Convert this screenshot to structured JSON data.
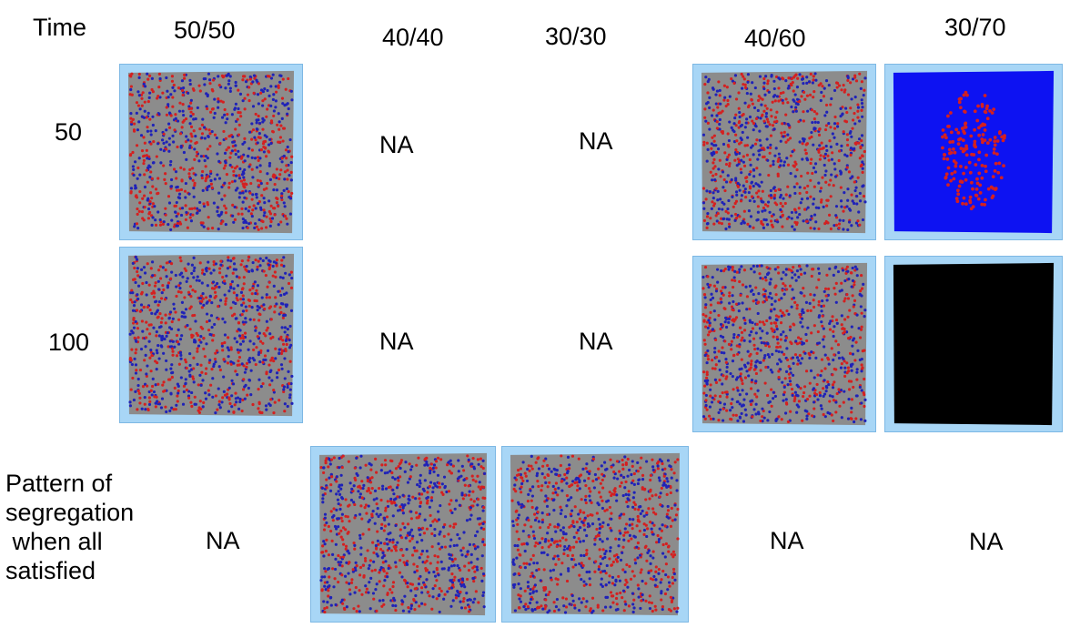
{
  "header": {
    "time_label": "Time",
    "columns": [
      "50/50",
      "40/40",
      "30/30",
      "40/60",
      "30/70"
    ]
  },
  "rows": {
    "r1": "50",
    "r2": "100",
    "r3_line1": "Pattern of",
    "r3_line2": "segregation",
    "r3_line3": " when all",
    "r3_line4": "satisfied"
  },
  "na_label": "NA",
  "colors": {
    "frame": "#a8d6f6",
    "grid_gray": "#8c8c8c",
    "red_agent": "#d42020",
    "blue_agent": "#1f22b8",
    "blue_field": "#0d12f2",
    "black_field": "#000000"
  },
  "panels": [
    {
      "id": "p-50-50-t50",
      "kind": "mixed"
    },
    {
      "id": "p-50-50-t100",
      "kind": "mixed"
    },
    {
      "id": "p-40-60-t50",
      "kind": "mixed"
    },
    {
      "id": "p-40-60-t100",
      "kind": "mixed"
    },
    {
      "id": "p-30-70-t50",
      "kind": "blue-cluster"
    },
    {
      "id": "p-30-70-t100",
      "kind": "black"
    },
    {
      "id": "p-40-40-final",
      "kind": "mixed"
    },
    {
      "id": "p-30-30-final",
      "kind": "mixed"
    }
  ]
}
